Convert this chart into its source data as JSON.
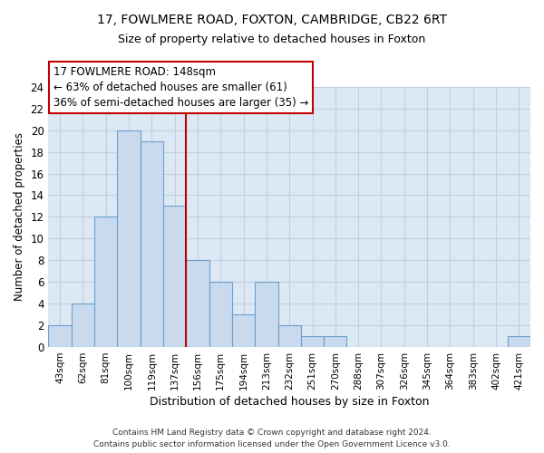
{
  "title": "17, FOWLMERE ROAD, FOXTON, CAMBRIDGE, CB22 6RT",
  "subtitle": "Size of property relative to detached houses in Foxton",
  "xlabel": "Distribution of detached houses by size in Foxton",
  "ylabel": "Number of detached properties",
  "bin_labels": [
    "43sqm",
    "62sqm",
    "81sqm",
    "100sqm",
    "119sqm",
    "137sqm",
    "156sqm",
    "175sqm",
    "194sqm",
    "213sqm",
    "232sqm",
    "251sqm",
    "270sqm",
    "288sqm",
    "307sqm",
    "326sqm",
    "345sqm",
    "364sqm",
    "383sqm",
    "402sqm",
    "421sqm"
  ],
  "bar_heights": [
    2,
    4,
    12,
    20,
    19,
    13,
    8,
    6,
    3,
    6,
    2,
    1,
    1,
    0,
    0,
    0,
    0,
    0,
    0,
    0,
    1
  ],
  "bar_color": "#c9d9ee",
  "bar_edge_color": "#6aa0cc",
  "vline_color": "#c00000",
  "annotation_text": "17 FOWLMERE ROAD: 148sqm\n← 63% of detached houses are smaller (61)\n36% of semi-detached houses are larger (35) →",
  "annotation_box_edge_color": "#c00000",
  "ylim": [
    0,
    24
  ],
  "yticks": [
    0,
    2,
    4,
    6,
    8,
    10,
    12,
    14,
    16,
    18,
    20,
    22,
    24
  ],
  "footer_line1": "Contains HM Land Registry data © Crown copyright and database right 2024.",
  "footer_line2": "Contains public sector information licensed under the Open Government Licence v3.0.",
  "plot_bg_color": "#dde8f5",
  "grid_color": "#c0cfe0"
}
